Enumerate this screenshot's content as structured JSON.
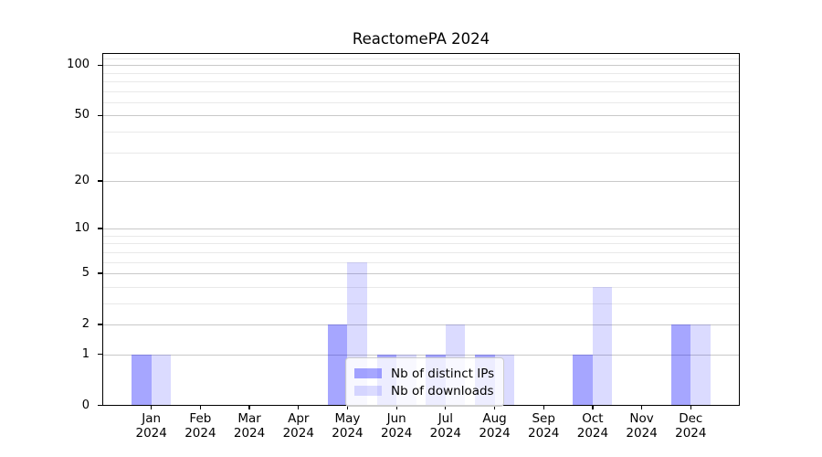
{
  "title": "ReactomePA 2024",
  "colors": {
    "bar_distinct_ips": "#0000ff59",
    "bar_downloads": "#0000ff24",
    "grid_major": "#c9c9c9",
    "grid_minor": "#e9e9e9",
    "spine": "#000000",
    "legend_border": "#cccccc",
    "background": "#ffffff",
    "text": "#000000"
  },
  "chart_data": {
    "type": "bar",
    "title": "ReactomePA 2024",
    "categories": [
      "Jan 2024",
      "Feb 2024",
      "Mar 2024",
      "Apr 2024",
      "May 2024",
      "Jun 2024",
      "Jul 2024",
      "Aug 2024",
      "Sep 2024",
      "Oct 2024",
      "Nov 2024",
      "Dec 2024"
    ],
    "series": [
      {
        "name": "Nb of distinct IPs",
        "color": "#0000ff59",
        "values": [
          1,
          0,
          0,
          0,
          2,
          1,
          1,
          1,
          0,
          1,
          0,
          2
        ]
      },
      {
        "name": "Nb of downloads",
        "color": "#0000ff24",
        "values": [
          1,
          0,
          0,
          0,
          6,
          1,
          2,
          1,
          0,
          4,
          0,
          2
        ]
      }
    ],
    "xlabel": "",
    "ylabel": "",
    "yscale": "log1p",
    "ylim": [
      0,
      118
    ],
    "yticks": [
      0,
      1,
      2,
      5,
      10,
      20,
      50,
      100
    ],
    "yticks_minor": [
      3,
      4,
      6,
      7,
      8,
      9,
      30,
      40,
      60,
      70,
      80,
      90,
      110
    ],
    "grid": true,
    "legend_position": "lower center",
    "bar_group_width": 0.8
  }
}
